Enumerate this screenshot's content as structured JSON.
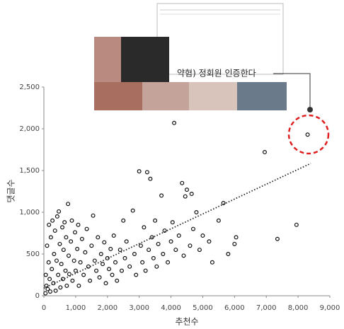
{
  "chart_data": {
    "type": "scatter",
    "x_label": "추천수",
    "y_label": "댓글수",
    "annotation": "약혐) 정회원 인증한다",
    "color": "#111111",
    "x": [
      50,
      60,
      80,
      100,
      120,
      150,
      160,
      180,
      200,
      220,
      250,
      270,
      300,
      320,
      350,
      370,
      400,
      420,
      450,
      470,
      500,
      520,
      550,
      580,
      600,
      620,
      650,
      680,
      700,
      720,
      760,
      780,
      800,
      850,
      880,
      900,
      950,
      980,
      1000,
      1050,
      1080,
      1100,
      1150,
      1200,
      1250,
      1300,
      1350,
      1400,
      1450,
      1500,
      1550,
      1600,
      1650,
      1700,
      1750,
      1800,
      1850,
      1900,
      1950,
      2000,
      2050,
      2100,
      2150,
      2200,
      2250,
      2300,
      2400,
      2450,
      2500,
      2550,
      2600,
      2700,
      2800,
      2850,
      2900,
      3000,
      3050,
      3100,
      3150,
      3200,
      3250,
      3300,
      3350,
      3400,
      3450,
      3500,
      3550,
      3600,
      3700,
      3750,
      3800,
      3900,
      4000,
      4050,
      4100,
      4150,
      4250,
      4350,
      4400,
      4450,
      4500,
      4600,
      4650,
      4700,
      4800,
      4900,
      5000,
      5200,
      5300,
      5500,
      5650,
      5800,
      6000,
      6050,
      6950,
      7350,
      7950,
      8300
    ],
    "values": [
      30,
      250,
      120,
      600,
      80,
      400,
      850,
      200,
      50,
      700,
      320,
      900,
      150,
      500,
      780,
      60,
      420,
      950,
      250,
      1010,
      620,
      100,
      380,
      820,
      200,
      550,
      880,
      300,
      700,
      120,
      1100,
      480,
      260,
      650,
      900,
      180,
      420,
      760,
      300,
      560,
      850,
      120,
      400,
      680,
      250,
      520,
      800,
      350,
      180,
      600,
      960,
      420,
      300,
      700,
      220,
      500,
      380,
      640,
      150,
      450,
      320,
      560,
      250,
      720,
      400,
      180,
      550,
      300,
      900,
      450,
      650,
      350,
      1020,
      500,
      250,
      1490,
      600,
      400,
      820,
      300,
      1480,
      550,
      1400,
      700,
      450,
      900,
      350,
      620,
      1200,
      500,
      780,
      400,
      650,
      880,
      2070,
      550,
      720,
      1350,
      480,
      1190,
      1270,
      600,
      1220,
      800,
      1000,
      550,
      720,
      650,
      400,
      900,
      1110,
      500,
      620,
      700,
      1720,
      680,
      850,
      1930
    ],
    "trendline": {
      "x": [
        0,
        8400
      ],
      "y": [
        90,
        1585
      ]
    },
    "xlim": [
      0,
      9000
    ],
    "xticks": [
      0,
      {
        "value": 1000,
        "label": "1,000"
      },
      {
        "value": 2000,
        "label": "2,000"
      },
      {
        "value": 3000,
        "label": "3,000"
      },
      {
        "value": 4000,
        "label": "4,000"
      },
      {
        "value": 5000,
        "label": "5,000"
      },
      {
        "value": 6000,
        "label": "6,000"
      },
      {
        "value": 7000,
        "label": "7,000"
      },
      {
        "value": 8000,
        "label": "8,000"
      },
      {
        "value": 9000,
        "label": "9,000"
      }
    ],
    "ylim": [
      0,
      2500
    ],
    "yticks": [
      0,
      500,
      {
        "value": 1000,
        "label": "1,000"
      },
      {
        "value": 1500,
        "label": "1,500"
      },
      {
        "value": 2000,
        "label": "2,000"
      },
      {
        "value": 2500,
        "label": "2,500"
      }
    ]
  }
}
